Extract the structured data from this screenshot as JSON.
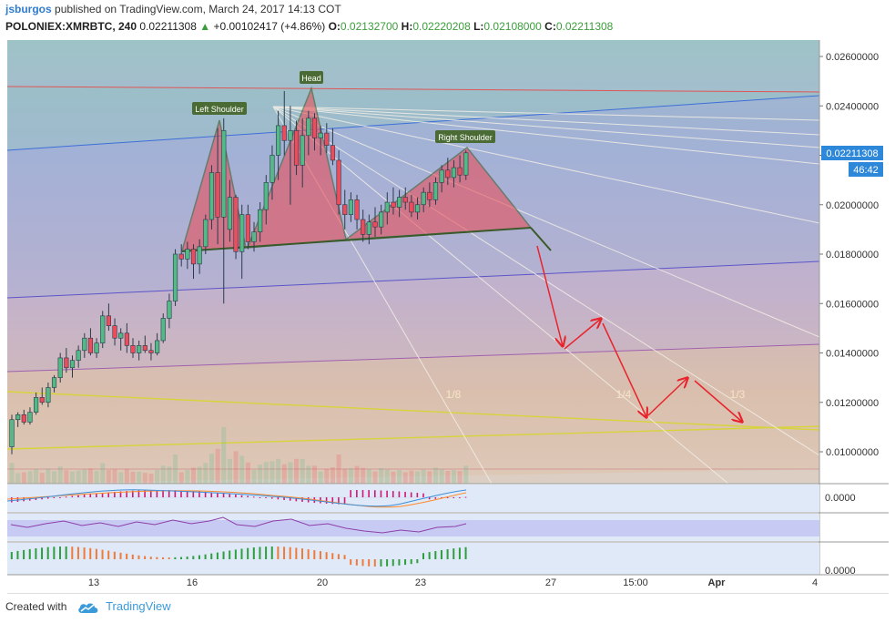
{
  "header": {
    "user": "jsburgos",
    "published_text": "published on TradingView.com, March 24, 2017 14:13 COT",
    "symbol": "POLONIEX:XMRBTC, 240",
    "last": "0.02211308",
    "change_arrow": "▲",
    "change": "+0.00102417 (+4.86%)",
    "o_label": "O:",
    "o_value": "0.02132700",
    "h_label": "H:",
    "h_value": "0.02220208",
    "l_label": "L:",
    "l_value": "0.02108000",
    "c_label": "C:",
    "c_value": "0.02211308"
  },
  "price_axis": {
    "ticks": [
      "0.02600000",
      "0.02400000",
      "0.02200000",
      "0.02000000",
      "0.01800000",
      "0.01600000",
      "0.01400000",
      "0.01200000",
      "0.01000000"
    ],
    "current_price": "0.02211308",
    "countdown": "46:42"
  },
  "time_axis": {
    "labels": [
      "13",
      "16",
      "20",
      "23",
      "27",
      "15:00",
      "Apr",
      "4"
    ]
  },
  "indicator_axes": {
    "macd": "0.0000",
    "ao": "0.0000"
  },
  "annotations": {
    "left_shoulder": "Left Shoulder",
    "head": "Head",
    "right_shoulder": "Right Shoulder",
    "fan_1_8": "1/8",
    "fan_1_4": "1/4",
    "fan_1_3": "1/3"
  },
  "footer": {
    "created_with": "Created with",
    "brand": "TradingView"
  },
  "colors": {
    "up": "#53b987",
    "down": "#eb4d5c",
    "pattern_fill": "#e8505a",
    "fan": "#f3efe6",
    "arrow": "#e8232c",
    "label_bg": "#4a6b33",
    "price_tag": "#2e88d9",
    "pitchfork_median": "#e05555",
    "pitchfork_upper": "#3d6fd8",
    "pitchfork_lower": "#d6d43a"
  },
  "chart_data": [
    {
      "type": "candlestick",
      "title": "POLONIEX:XMRBTC, 240",
      "ylim": [
        0.0092,
        0.027
      ],
      "x_labels": [
        "13",
        "16",
        "20",
        "23",
        "27",
        "15:00",
        "Apr",
        "4"
      ],
      "ohlc": [
        [
          0.0102,
          0.0115,
          0.0099,
          0.0113
        ],
        [
          0.0113,
          0.0116,
          0.011,
          0.0115
        ],
        [
          0.0115,
          0.0117,
          0.0111,
          0.0112
        ],
        [
          0.0112,
          0.0118,
          0.0111,
          0.0116
        ],
        [
          0.0116,
          0.0124,
          0.0115,
          0.0122
        ],
        [
          0.0122,
          0.0126,
          0.0119,
          0.012
        ],
        [
          0.012,
          0.0128,
          0.0118,
          0.0126
        ],
        [
          0.0126,
          0.0131,
          0.0124,
          0.013
        ],
        [
          0.013,
          0.014,
          0.0128,
          0.0138
        ],
        [
          0.0138,
          0.0142,
          0.0132,
          0.0134
        ],
        [
          0.0134,
          0.0139,
          0.013,
          0.0137
        ],
        [
          0.0137,
          0.0143,
          0.0134,
          0.0141
        ],
        [
          0.0141,
          0.0148,
          0.0138,
          0.0146
        ],
        [
          0.0146,
          0.015,
          0.0139,
          0.014
        ],
        [
          0.014,
          0.0146,
          0.0138,
          0.0144
        ],
        [
          0.0144,
          0.0157,
          0.0142,
          0.0155
        ],
        [
          0.0155,
          0.016,
          0.0149,
          0.0151
        ],
        [
          0.0151,
          0.0154,
          0.0143,
          0.0146
        ],
        [
          0.0146,
          0.015,
          0.0141,
          0.0148
        ],
        [
          0.0148,
          0.0152,
          0.014,
          0.0143
        ],
        [
          0.0143,
          0.0146,
          0.0138,
          0.014
        ],
        [
          0.014,
          0.0145,
          0.0137,
          0.0143
        ],
        [
          0.0143,
          0.0147,
          0.014,
          0.0141
        ],
        [
          0.0141,
          0.0144,
          0.0137,
          0.014
        ],
        [
          0.014,
          0.0148,
          0.0139,
          0.0145
        ],
        [
          0.0145,
          0.0156,
          0.0144,
          0.0154
        ],
        [
          0.0154,
          0.0164,
          0.015,
          0.0161
        ],
        [
          0.0161,
          0.0182,
          0.0159,
          0.018
        ],
        [
          0.018,
          0.0184,
          0.0175,
          0.0178
        ],
        [
          0.0178,
          0.0185,
          0.0174,
          0.0182
        ],
        [
          0.0182,
          0.0184,
          0.017,
          0.0176
        ],
        [
          0.0176,
          0.0186,
          0.0172,
          0.0183
        ],
        [
          0.0183,
          0.0196,
          0.018,
          0.0194
        ],
        [
          0.0194,
          0.0216,
          0.019,
          0.0213
        ],
        [
          0.0213,
          0.0231,
          0.0184,
          0.0195
        ],
        [
          0.0195,
          0.0235,
          0.016,
          0.023
        ],
        [
          0.019,
          0.021,
          0.0185,
          0.0203
        ],
        [
          0.0203,
          0.0204,
          0.0178,
          0.0181
        ],
        [
          0.0181,
          0.02,
          0.017,
          0.0196
        ],
        [
          0.0196,
          0.02,
          0.0182,
          0.0185
        ],
        [
          0.0185,
          0.0193,
          0.0181,
          0.0189
        ],
        [
          0.0189,
          0.0201,
          0.0185,
          0.0198
        ],
        [
          0.0198,
          0.0212,
          0.0192,
          0.0209
        ],
        [
          0.0209,
          0.0224,
          0.0202,
          0.022
        ],
        [
          0.022,
          0.0238,
          0.021,
          0.0232
        ],
        [
          0.0232,
          0.0246,
          0.022,
          0.0226
        ],
        [
          0.0226,
          0.024,
          0.02,
          0.023
        ],
        [
          0.023,
          0.0234,
          0.0212,
          0.0216
        ],
        [
          0.0216,
          0.0235,
          0.0207,
          0.0228
        ],
        [
          0.0228,
          0.0238,
          0.022,
          0.0235
        ],
        [
          0.0235,
          0.0237,
          0.0222,
          0.0227
        ],
        [
          0.0227,
          0.0232,
          0.022,
          0.0229
        ],
        [
          0.0229,
          0.0233,
          0.0221,
          0.0224
        ],
        [
          0.0224,
          0.0231,
          0.0216,
          0.0218
        ],
        [
          0.0218,
          0.0222,
          0.0196,
          0.02
        ],
        [
          0.02,
          0.0206,
          0.019,
          0.0196
        ],
        [
          0.0196,
          0.0205,
          0.0193,
          0.0202
        ],
        [
          0.0202,
          0.0204,
          0.019,
          0.0194
        ],
        [
          0.0194,
          0.0198,
          0.0185,
          0.0188
        ],
        [
          0.0188,
          0.0196,
          0.0184,
          0.0193
        ],
        [
          0.0193,
          0.0199,
          0.0187,
          0.0191
        ],
        [
          0.0191,
          0.02,
          0.0188,
          0.0197
        ],
        [
          0.0197,
          0.0205,
          0.0192,
          0.0201
        ],
        [
          0.0201,
          0.0207,
          0.0196,
          0.0199
        ],
        [
          0.0199,
          0.0206,
          0.0195,
          0.0203
        ],
        [
          0.0203,
          0.0207,
          0.0198,
          0.0201
        ],
        [
          0.0201,
          0.0204,
          0.0195,
          0.0197
        ],
        [
          0.0197,
          0.0203,
          0.0194,
          0.02
        ],
        [
          0.02,
          0.0207,
          0.0197,
          0.0205
        ],
        [
          0.0205,
          0.0209,
          0.0199,
          0.0202
        ],
        [
          0.0202,
          0.0211,
          0.02,
          0.0209
        ],
        [
          0.0209,
          0.0216,
          0.0205,
          0.0214
        ],
        [
          0.0214,
          0.0219,
          0.0208,
          0.0211
        ],
        [
          0.0211,
          0.0218,
          0.0207,
          0.0215
        ],
        [
          0.0215,
          0.022,
          0.0209,
          0.0212
        ],
        [
          0.0212,
          0.0222,
          0.021,
          0.0221
        ]
      ]
    }
  ]
}
